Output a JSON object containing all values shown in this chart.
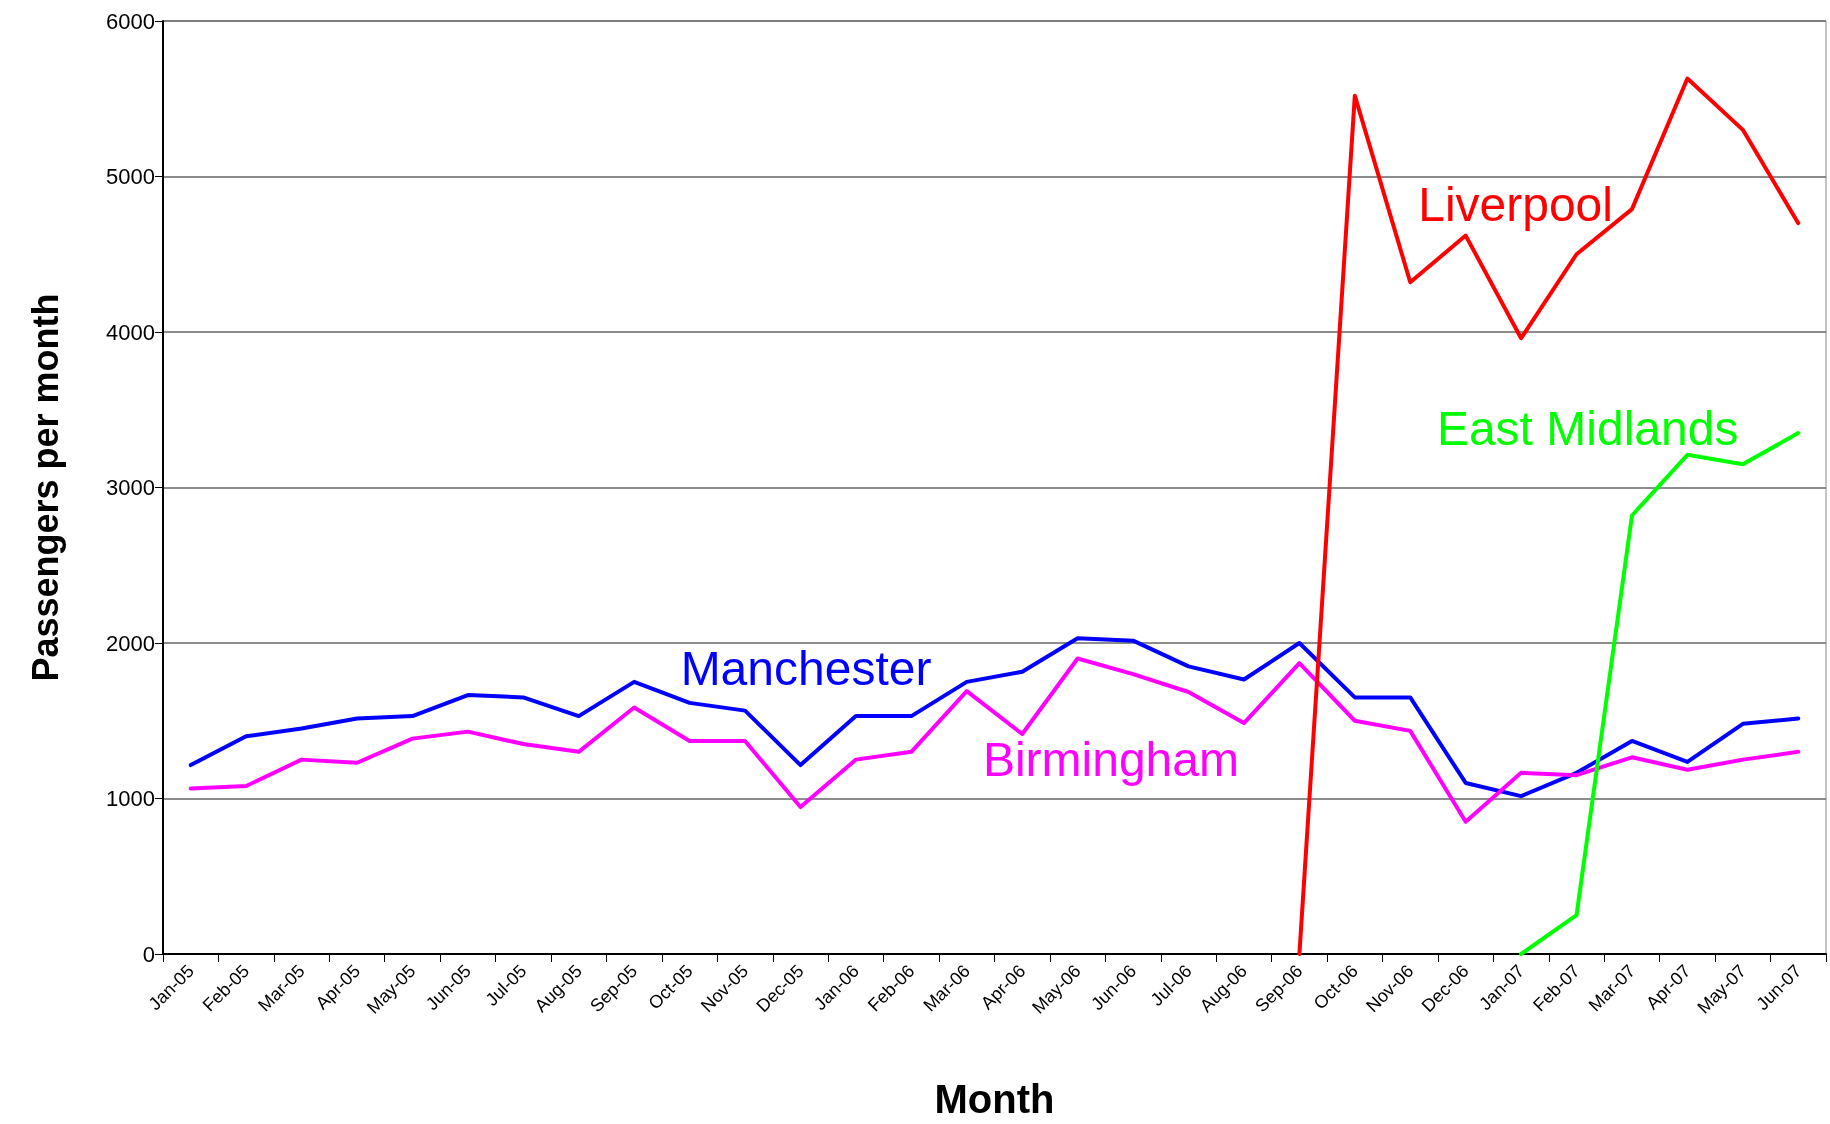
{
  "chart_data": {
    "type": "line",
    "xlabel": "Month",
    "ylabel": "Passengers per month",
    "categories": [
      "Jan-05",
      "Feb-05",
      "Mar-05",
      "Apr-05",
      "May-05",
      "Jun-05",
      "Jul-05",
      "Aug-05",
      "Sep-05",
      "Oct-05",
      "Nov-05",
      "Dec-05",
      "Jan-06",
      "Feb-06",
      "Mar-06",
      "Apr-06",
      "May-06",
      "Jun-06",
      "Jul-06",
      "Aug-06",
      "Sep-06",
      "Oct-06",
      "Nov-06",
      "Dec-06",
      "Jan-07",
      "Feb-07",
      "Mar-07",
      "Apr-07",
      "May-07",
      "Jun-07"
    ],
    "series": [
      {
        "name": "Manchester",
        "color": "#0000ff",
        "values": [
          1215,
          1400,
          1450,
          1515,
          1530,
          1665,
          1650,
          1530,
          1750,
          1615,
          1565,
          1215,
          1530,
          1530,
          1750,
          1815,
          2030,
          2015,
          1850,
          1765,
          2000,
          1650,
          1650,
          1100,
          1015,
          1165,
          1370,
          1235,
          1480,
          1515
        ]
      },
      {
        "name": "Birmingham",
        "color": "#ff00ff",
        "values": [
          1065,
          1080,
          1250,
          1230,
          1385,
          1430,
          1350,
          1300,
          1585,
          1370,
          1370,
          945,
          1250,
          1300,
          1690,
          1415,
          1900,
          1800,
          1685,
          1485,
          1870,
          1500,
          1435,
          850,
          1165,
          1150,
          1265,
          1185,
          1250,
          1300
        ]
      },
      {
        "name": "Liverpool",
        "color": "#ff0000",
        "values": [
          null,
          null,
          null,
          null,
          null,
          null,
          null,
          null,
          null,
          null,
          null,
          null,
          null,
          null,
          null,
          null,
          null,
          null,
          null,
          null,
          0,
          5520,
          4320,
          4620,
          3960,
          4500,
          4790,
          5630,
          5300,
          4700
        ]
      },
      {
        "name": "East Midlands",
        "color": "#00ff00",
        "values": [
          null,
          null,
          null,
          null,
          null,
          null,
          null,
          null,
          null,
          null,
          null,
          null,
          null,
          null,
          null,
          null,
          null,
          null,
          null,
          null,
          null,
          null,
          null,
          null,
          0,
          250,
          2820,
          3210,
          3150,
          3350
        ]
      }
    ],
    "ylim": [
      0,
      6000
    ],
    "yticks": [
      0,
      1000,
      2000,
      3000,
      4000,
      5000,
      6000
    ],
    "grid": "y",
    "legend": false,
    "marker": "none",
    "line_style": "solid"
  }
}
